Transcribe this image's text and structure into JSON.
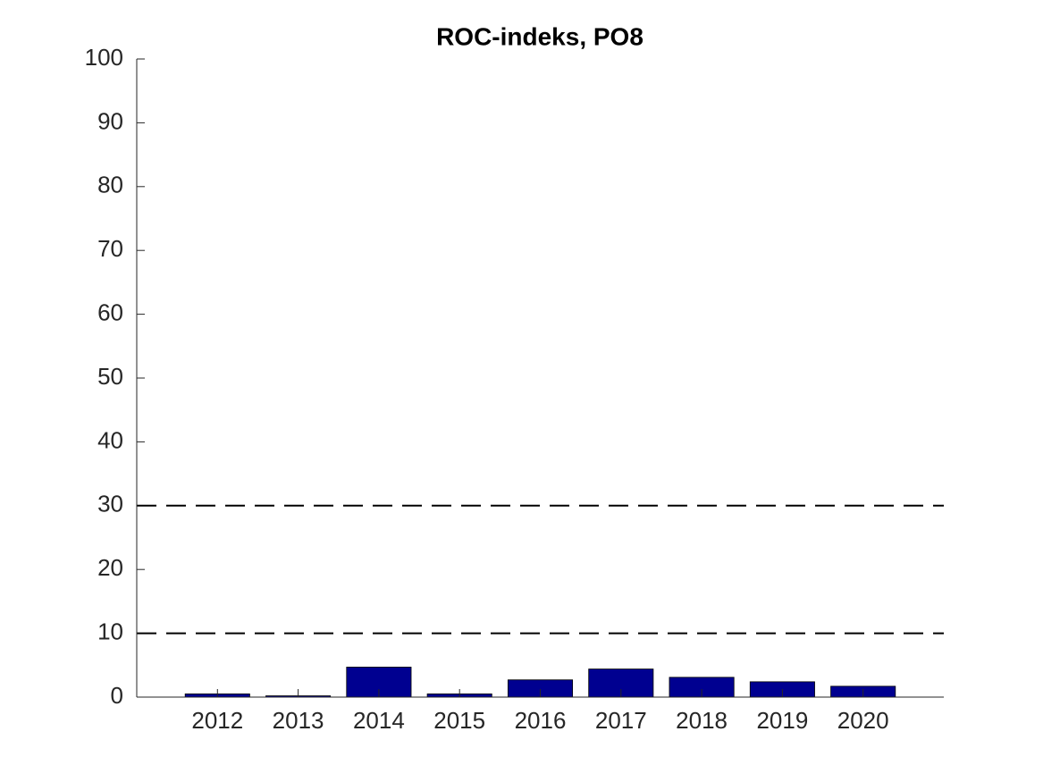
{
  "chart_data": {
    "type": "bar",
    "title": "ROC-indeks, PO8",
    "x": [
      2012,
      2013,
      2014,
      2015,
      2016,
      2017,
      2018,
      2019,
      2020
    ],
    "values": [
      0.5,
      0.2,
      4.7,
      0.5,
      2.7,
      4.4,
      3.1,
      2.4,
      1.7
    ],
    "color": "#000090",
    "xlim": [
      2011,
      2021
    ],
    "xticks": [
      2012,
      2013,
      2014,
      2015,
      2016,
      2017,
      2018,
      2019,
      2020
    ],
    "ylim": [
      0,
      100
    ],
    "yticks": [
      0,
      10,
      20,
      30,
      40,
      50,
      60,
      70,
      80,
      90,
      100
    ],
    "reference_lines": [
      10,
      30
    ]
  }
}
